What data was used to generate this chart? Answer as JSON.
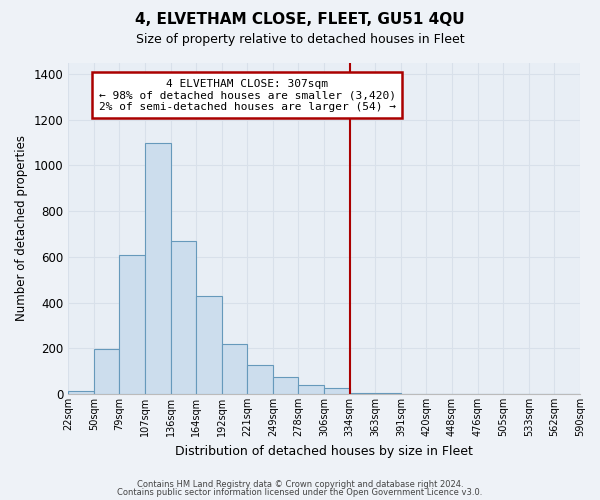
{
  "title": "4, ELVETHAM CLOSE, FLEET, GU51 4QU",
  "subtitle": "Size of property relative to detached houses in Fleet",
  "xlabel": "Distribution of detached houses by size in Fleet",
  "ylabel": "Number of detached properties",
  "bar_values": [
    15,
    195,
    610,
    1100,
    670,
    430,
    220,
    125,
    75,
    40,
    25,
    5,
    3,
    2,
    1,
    0,
    0,
    0,
    0,
    0
  ],
  "bin_labels": [
    "22sqm",
    "50sqm",
    "79sqm",
    "107sqm",
    "136sqm",
    "164sqm",
    "192sqm",
    "221sqm",
    "249sqm",
    "278sqm",
    "306sqm",
    "334sqm",
    "363sqm",
    "391sqm",
    "420sqm",
    "448sqm",
    "476sqm",
    "505sqm",
    "533sqm",
    "562sqm",
    "590sqm"
  ],
  "bar_color": "#ccdded",
  "bar_edge_color": "#6699bb",
  "vline_x": 10.5,
  "vline_color": "#aa0000",
  "annotation_title": "4 ELVETHAM CLOSE: 307sqm",
  "annotation_line1": "← 98% of detached houses are smaller (3,420)",
  "annotation_line2": "2% of semi-detached houses are larger (54) →",
  "annotation_box_facecolor": "#ffffff",
  "annotation_box_edgecolor": "#aa0000",
  "ylim": [
    0,
    1450
  ],
  "yticks": [
    0,
    200,
    400,
    600,
    800,
    1000,
    1200,
    1400
  ],
  "footnote1": "Contains HM Land Registry data © Crown copyright and database right 2024.",
  "footnote2": "Contains public sector information licensed under the Open Government Licence v3.0.",
  "background_color": "#eef2f7",
  "grid_color": "#d8e0ea",
  "plot_bg_color": "#e8eef5"
}
